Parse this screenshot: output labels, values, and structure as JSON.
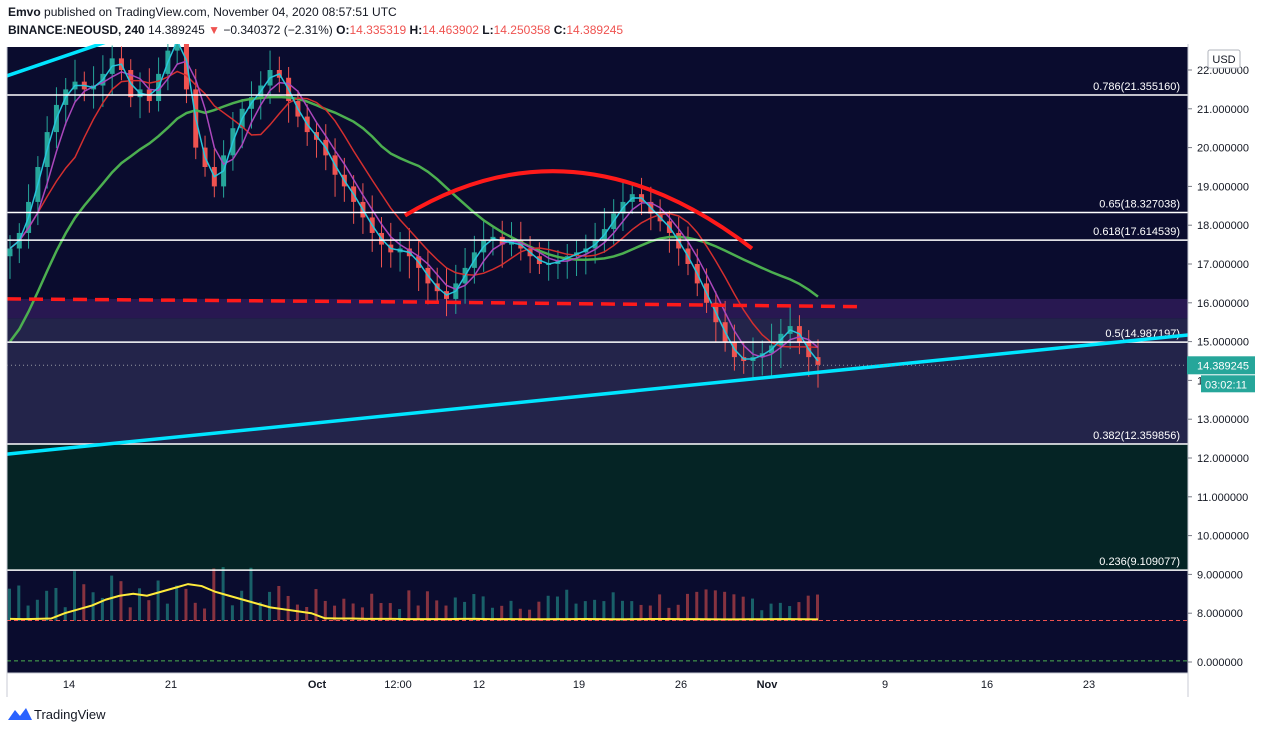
{
  "header": {
    "author": "Emvo",
    "published_text": "published on TradingView.com, November 04, 2020 08:57:51 UTC",
    "symbol": "BINANCE:NEOUSD, 240",
    "last": "14.389245",
    "change_arrow": "▼",
    "change": "−0.340372 (−2.31%)",
    "o_label": "O:",
    "o": "14.335319",
    "h_label": "H:",
    "h": "14.463902",
    "l_label": "L:",
    "l": "14.250358",
    "c_label": "C:",
    "c": "14.389245"
  },
  "footer": {
    "brand": "TradingView"
  },
  "colors": {
    "bg": "#0a0c2e",
    "up": "#26a69a",
    "down": "#ef5350",
    "cyan_line": "#00e5ff",
    "ema_fast": "#26c6da",
    "ema_mid": "#ab47bc",
    "ema_red": "#d32f2f",
    "ema_slow": "#4caf50",
    "arc": "#ff1a1a",
    "volume_ma": "#ffeb3b"
  },
  "chart_data": {
    "type": "candlestick",
    "currency": "USD",
    "price_now": "14.389245",
    "countdown": "03:02:11",
    "y_ticks": [
      "22.000000",
      "21.000000",
      "20.000000",
      "19.000000",
      "18.000000",
      "17.000000",
      "16.000000",
      "15.000000",
      "14.000000",
      "13.000000",
      "12.000000",
      "11.000000",
      "10.000000",
      "9.000000",
      "8.000000",
      "0.000000"
    ],
    "x_ticks": [
      "14",
      "21",
      "Oct",
      "12:00",
      "12",
      "19",
      "26",
      "Nov",
      "9",
      "16",
      "23"
    ],
    "fib_levels": [
      {
        "label": "0.786(21.355160)",
        "value": 21.35516
      },
      {
        "label": "0.65(18.327038)",
        "value": 18.327038
      },
      {
        "label": "0.618(17.614539)",
        "value": 17.614539
      },
      {
        "label": "0.5(14.987197)",
        "value": 14.987197
      },
      {
        "label": "0.382(12.359856)",
        "value": 12.359856
      },
      {
        "label": "0.236(9.109077)",
        "value": 9.109077
      }
    ],
    "support_dashed": 16.0,
    "candles_close": [
      17.4,
      17.8,
      18.6,
      19.5,
      20.4,
      21.1,
      21.5,
      21.7,
      21.5,
      21.6,
      21.9,
      22.3,
      22.0,
      21.3,
      21.5,
      21.2,
      21.9,
      22.5,
      23.0,
      21.5,
      20.0,
      19.5,
      19.0,
      19.8,
      20.5,
      21.0,
      21.3,
      21.6,
      22.0,
      21.8,
      21.2,
      20.8,
      20.4,
      20.2,
      19.8,
      19.3,
      19.0,
      18.6,
      18.2,
      17.8,
      17.5,
      17.3,
      17.4,
      17.2,
      16.9,
      16.5,
      16.3,
      16.1,
      16.5,
      16.9,
      17.3,
      17.6,
      17.7,
      17.5,
      17.6,
      17.4,
      17.2,
      17.0,
      17.0,
      17.1,
      17.2,
      17.3,
      17.4,
      17.6,
      17.9,
      18.3,
      18.6,
      18.8,
      18.6,
      18.3,
      18.1,
      17.8,
      17.4,
      17.0,
      16.5,
      16.0,
      15.5,
      15.0,
      14.6,
      14.5,
      14.6,
      14.7,
      14.9,
      15.2,
      15.4,
      15.0,
      14.6,
      14.4
    ],
    "volume_ma": [
      7.85,
      7.8,
      7.85,
      7.9,
      8.0,
      8.1,
      8.2,
      8.35,
      8.45,
      8.5,
      8.45,
      8.55,
      8.65,
      8.75,
      8.7,
      8.55,
      8.45,
      8.35,
      8.25,
      8.15,
      8.1,
      8.05,
      8.0,
      7.95,
      7.9,
      7.9,
      7.85,
      7.85,
      7.85,
      7.8,
      7.8,
      7.8,
      7.8,
      7.85,
      7.85,
      7.8,
      7.8,
      7.8,
      7.78,
      7.78,
      7.8,
      7.8,
      7.82,
      7.8,
      7.78,
      7.78,
      7.8,
      7.82,
      7.82,
      7.8,
      7.8,
      7.78,
      7.75,
      7.75,
      7.78,
      7.78,
      7.8,
      7.8,
      7.78,
      7.76
    ]
  }
}
